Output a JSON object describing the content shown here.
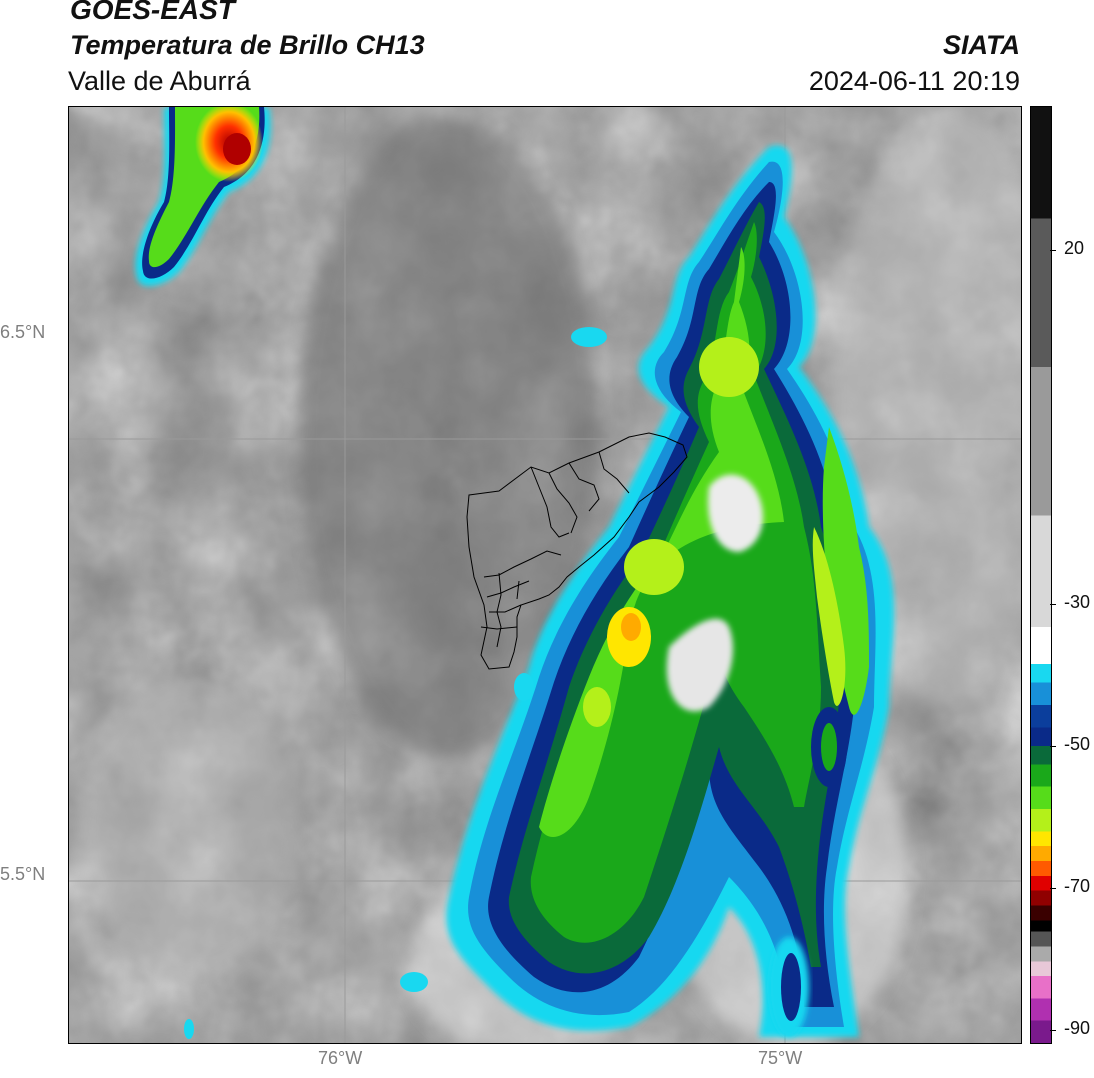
{
  "header": {
    "satellite": "GOES-EAST",
    "product": "Temperatura de Brillo CH13",
    "region": "Valle de Aburrá",
    "agency": "SIATA",
    "datetime": "2024-06-11 20:19"
  },
  "map": {
    "lat_ticks": [
      "6.5°N",
      "5.5°N"
    ],
    "lon_ticks": [
      "76°W",
      "75°W"
    ],
    "basemap": "grayscale brightness temperature with colored convective clouds",
    "overlay": "Valle de Aburrá municipal boundaries"
  },
  "colorbar": {
    "labels": [
      "20",
      "-30",
      "-50",
      "-70",
      "-90"
    ],
    "colors": [
      "#111111",
      "#5a5a5a",
      "#9a9a9a",
      "#d8d8d8",
      "#ffffff",
      "#19d8f0",
      "#1890d8",
      "#0b3e9c",
      "#0a2a88",
      "#0a6a3a",
      "#1aa81a",
      "#56dc1a",
      "#b4f01a",
      "#ffe600",
      "#ffaa00",
      "#ff5a00",
      "#e00000",
      "#900000",
      "#3a0000",
      "#000000",
      "#555555",
      "#aaaaaa",
      "#e8c8d8",
      "#e870c8",
      "#b030b0",
      "#7a1a8c"
    ]
  }
}
